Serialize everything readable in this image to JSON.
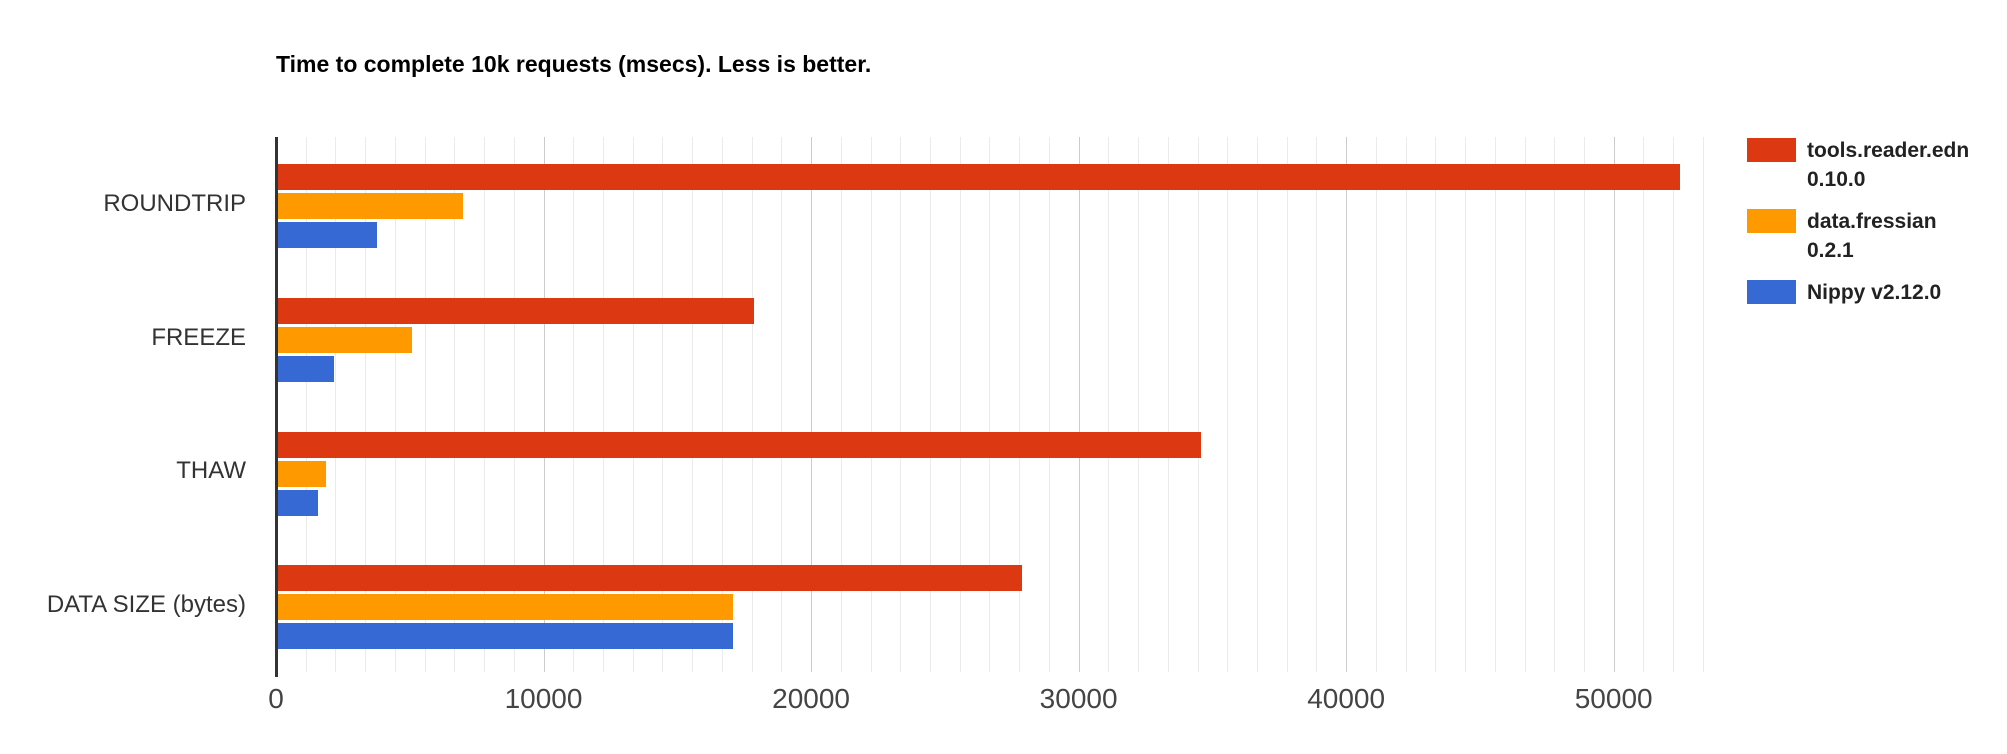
{
  "chart_data": {
    "type": "bar",
    "orientation": "horizontal",
    "title": "Time to complete 10k requests (msecs). Less is better.",
    "categories": [
      "ROUNDTRIP",
      "FREEZE",
      "THAW",
      "DATA SIZE (bytes)"
    ],
    "series": [
      {
        "name": "tools.reader.edn 0.10.0",
        "legend_lines": [
          "tools.reader.edn",
          "0.10.0"
        ],
        "color": "#dc3912",
        "values": [
          52400,
          17800,
          34500,
          27800
        ]
      },
      {
        "name": "data.fressian 0.2.1",
        "legend_lines": [
          "data.fressian",
          "0.2.1"
        ],
        "color": "#ff9900",
        "values": [
          6900,
          5000,
          1800,
          17000
        ]
      },
      {
        "name": "Nippy v2.12.0",
        "legend_lines": [
          "Nippy v2.12.0"
        ],
        "color": "#3669d4",
        "values": [
          3700,
          2100,
          1500,
          17000
        ]
      }
    ],
    "x_ticks": [
      0,
      10000,
      20000,
      30000,
      40000,
      50000
    ],
    "x_tick_labels": [
      "0",
      "10000",
      "20000",
      "30000",
      "40000",
      "50000"
    ],
    "xlim": [
      0,
      53600
    ],
    "xlabel": "",
    "ylabel": "",
    "grid": {
      "major_every": 10000,
      "minor_per_major": 9,
      "grid_on": true
    },
    "legend_position": "right"
  }
}
